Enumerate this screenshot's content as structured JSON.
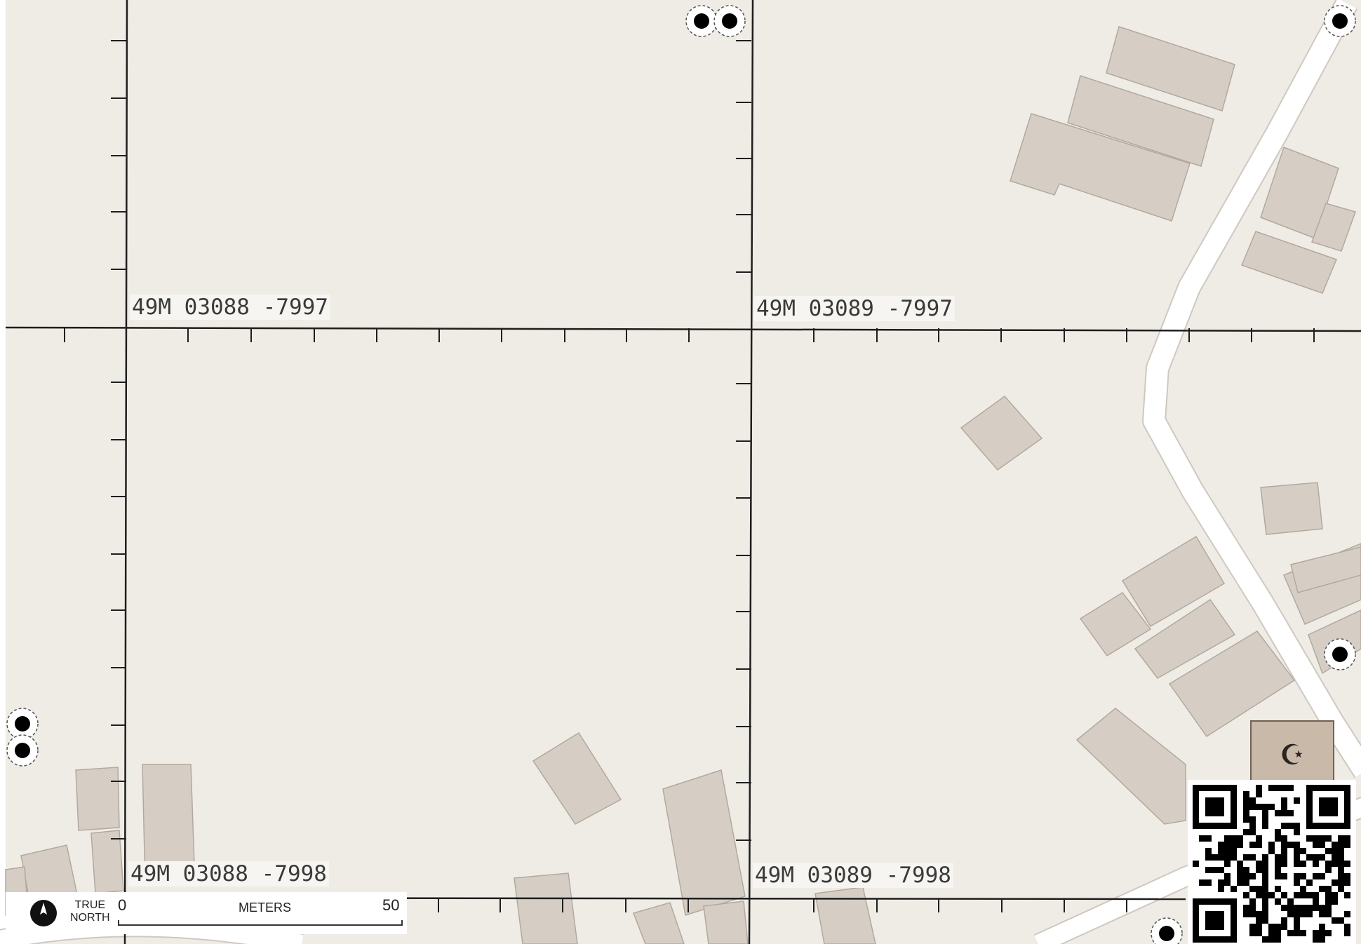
{
  "map": {
    "colors": {
      "land": "#efece6",
      "building": "#d6cec5",
      "building_stroke": "#b2a89e",
      "road": "#ffffff",
      "road_stroke": "#cfc8c0",
      "grid": "#1e1e1e",
      "poi_fill": "#c9b9a8",
      "poi_stroke": "#6f6256"
    },
    "grid_labels": [
      {
        "id": "nw",
        "text": "49M 03088 -7997"
      },
      {
        "id": "ne",
        "text": "49M 03089 -7997"
      },
      {
        "id": "sw",
        "text": "49M 03088 -7998"
      },
      {
        "id": "se",
        "text": "49M 03089 -7998"
      }
    ],
    "poi": {
      "icon": "mosque-icon",
      "symbol": "☪"
    },
    "legend": {
      "north_label_line1": "TRUE",
      "north_label_line2": "NORTH",
      "scale_min": "0",
      "scale_max": "50",
      "scale_unit": "METERS"
    },
    "qr_code": {
      "icon": "qr-code-icon"
    }
  }
}
